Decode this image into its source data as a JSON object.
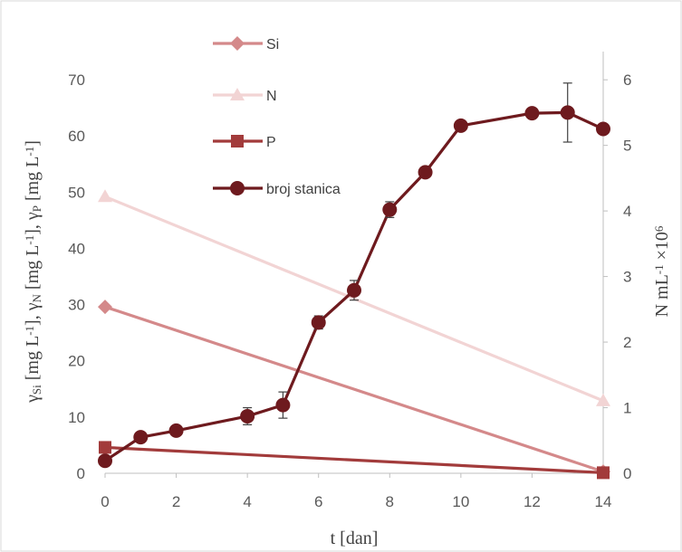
{
  "chart_data": {
    "type": "line",
    "xlabel": "t [dan]",
    "ylabel_left": {
      "parts": [
        {
          "t": "γ"
        },
        {
          "t": "Si",
          "sub": true
        },
        {
          "t": " [mg L"
        },
        {
          "t": "-1",
          "sup": true
        },
        {
          "t": "], "
        },
        {
          "t": "γ"
        },
        {
          "t": "N",
          "sub": true
        },
        {
          "t": " [mg L"
        },
        {
          "t": "-1",
          "sup": true
        },
        {
          "t": "], "
        },
        {
          "t": "γ"
        },
        {
          "t": "P",
          "sub": true
        },
        {
          "t": " [mg L"
        },
        {
          "t": "-1",
          "sup": true
        },
        {
          "t": "]"
        }
      ]
    },
    "ylabel_right": {
      "parts": [
        {
          "t": "N mL"
        },
        {
          "t": "-1",
          "sup": true
        },
        {
          "t": " ×10"
        },
        {
          "t": "6",
          "sup": true
        }
      ]
    },
    "xlim": [
      0,
      14
    ],
    "xticks": [
      0,
      2,
      4,
      6,
      8,
      10,
      12,
      14
    ],
    "ylim_left": [
      0,
      75
    ],
    "yticks_left": [
      0,
      10,
      20,
      30,
      40,
      50,
      60,
      70
    ],
    "ylim_right": [
      0,
      6.43
    ],
    "yticks_right": [
      0,
      1,
      2,
      3,
      4,
      5,
      6
    ],
    "grid": false,
    "legend_position": "top-left",
    "series": [
      {
        "name": "Si",
        "axis": "left",
        "marker": "diamond",
        "color": "#d4898a",
        "x": [
          0,
          14
        ],
        "y": [
          29.6,
          0.3
        ]
      },
      {
        "name": "N",
        "axis": "left",
        "marker": "triangle",
        "color": "#f2d4d4",
        "x": [
          0,
          14
        ],
        "y": [
          49.2,
          12.9
        ]
      },
      {
        "name": "P",
        "axis": "left",
        "marker": "square",
        "color": "#a23b3b",
        "x": [
          0,
          14
        ],
        "y": [
          4.6,
          0.1
        ]
      },
      {
        "name": "broj stanica",
        "axis": "right",
        "marker": "circle",
        "color": "#6e1a1e",
        "x": [
          0,
          1,
          2,
          4,
          5,
          6,
          7,
          8,
          9,
          10,
          12,
          13,
          14
        ],
        "y": [
          0.19,
          0.55,
          0.65,
          0.87,
          1.04,
          2.3,
          2.79,
          4.02,
          4.59,
          5.3,
          5.49,
          5.5,
          5.25
        ],
        "err": [
          0,
          0,
          0,
          0.13,
          0.2,
          0.1,
          0.15,
          0.12,
          0,
          0,
          0,
          0.45,
          0
        ]
      }
    ]
  }
}
